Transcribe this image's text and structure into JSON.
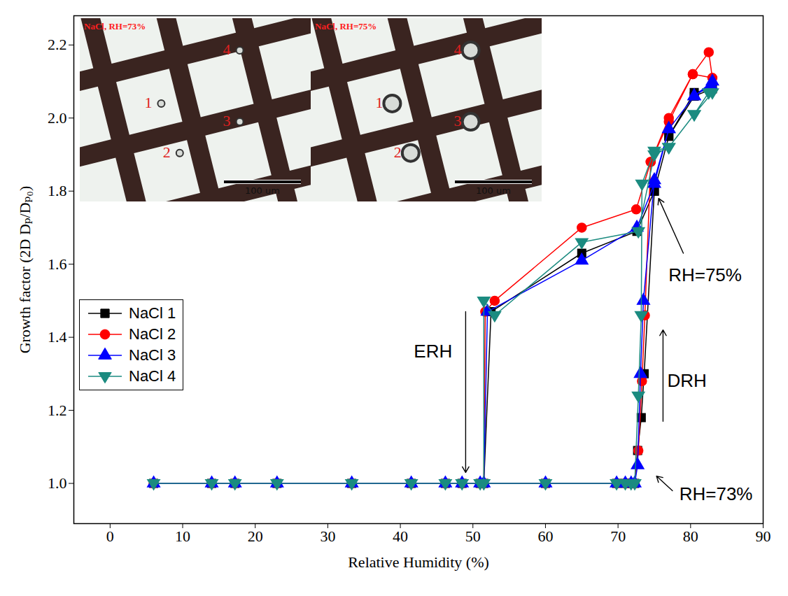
{
  "chart_data": {
    "type": "line",
    "x_label": "Relative Humidity (%)",
    "y_label": "Growth factor (2D Dₚ/Dₚ₀)",
    "xlim": [
      -5,
      90
    ],
    "xticks": [
      0,
      10,
      20,
      30,
      40,
      50,
      60,
      70,
      80,
      90
    ],
    "ylim": [
      0.89,
      2.28
    ],
    "yticks": [
      {
        "value": 1.0,
        "label": "1.0"
      },
      {
        "value": 1.2,
        "label": "1.2"
      },
      {
        "value": 1.4,
        "label": "1.4"
      },
      {
        "value": 1.6,
        "label": "1.6"
      },
      {
        "value": 1.8,
        "label": "1.8"
      },
      {
        "value": 2.0,
        "label": "2.0"
      },
      {
        "value": 2.2,
        "label": "2.2"
      }
    ],
    "legend": "left",
    "series": [
      {
        "name": "NaCl 1",
        "color": "#000000",
        "marker": "square",
        "line_style": "solid",
        "x": [
          6,
          14,
          17.2,
          23,
          33.3,
          41.5,
          46.2,
          48.5,
          51,
          60,
          69.8,
          71,
          71.8,
          72.3,
          72.7,
          73.2,
          73.6,
          75,
          77,
          80.5,
          83,
          80.5,
          77,
          75,
          72.6,
          65,
          52.5,
          51.5
        ],
        "values": [
          1,
          1,
          1,
          1,
          1,
          1,
          1,
          1,
          1,
          1,
          1,
          1,
          1,
          1,
          1.09,
          1.18,
          1.3,
          1.8,
          1.95,
          2.07,
          2.08,
          2.06,
          1.95,
          1.8,
          1.69,
          1.63,
          1.47,
          1.0
        ]
      },
      {
        "name": "NaCl 2",
        "color": "#ff0000",
        "marker": "circle",
        "line_style": "solid",
        "x": [
          6,
          14,
          17.2,
          23,
          33.3,
          41.5,
          46.2,
          48.5,
          51,
          60,
          69.8,
          71,
          71.8,
          72.3,
          72.8,
          73.3,
          73.7,
          74.5,
          77,
          80.3,
          83,
          82.5,
          80.3,
          77,
          74.5,
          72.5,
          65,
          53,
          51.7,
          51.5
        ],
        "values": [
          1,
          1,
          1,
          1,
          1,
          1,
          1,
          1,
          1,
          1,
          1,
          1,
          1,
          1,
          1.09,
          1.28,
          1.46,
          1.88,
          2.0,
          2.12,
          2.11,
          2.18,
          2.12,
          1.99,
          1.88,
          1.75,
          1.7,
          1.5,
          1.47,
          1.0
        ]
      },
      {
        "name": "NaCl 3",
        "color": "#0000ff",
        "marker": "triangle",
        "line_style": "solid",
        "x": [
          6,
          14,
          17.2,
          23,
          33.3,
          41.5,
          46.2,
          48.5,
          51,
          60,
          69.8,
          71,
          71.8,
          72.3,
          72.7,
          73.1,
          73.5,
          75,
          77,
          80.5,
          83,
          82.8,
          80.5,
          77,
          75,
          72.6,
          65,
          52,
          51.5
        ],
        "values": [
          1,
          1,
          1,
          1,
          1,
          1,
          1,
          1,
          1,
          1,
          1,
          1,
          1,
          1,
          1.05,
          1.3,
          1.5,
          1.83,
          1.97,
          2.06,
          2.1,
          2.09,
          2.06,
          1.97,
          1.82,
          1.7,
          1.61,
          1.47,
          1.0
        ]
      },
      {
        "name": "NaCl 4",
        "color": "#1b8b80",
        "marker": "triangle-down",
        "line_style": "solid",
        "x": [
          6,
          14,
          17.2,
          23,
          33.3,
          41.5,
          46.2,
          48.5,
          51,
          60,
          69.8,
          71,
          71.8,
          72.3,
          72.8,
          73.2,
          73.3,
          75,
          77,
          80.5,
          83,
          82.5,
          80.5,
          77,
          75,
          72.8,
          65,
          53,
          51.5,
          51.5
        ],
        "values": [
          1,
          1,
          1,
          1,
          1,
          1,
          1,
          1,
          1,
          1,
          1,
          1,
          1,
          1,
          1.24,
          1.46,
          1.82,
          1.91,
          1.92,
          2.01,
          2.07,
          2.07,
          2.01,
          1.92,
          1.9,
          1.69,
          1.66,
          1.46,
          1.5,
          1.0
        ]
      }
    ],
    "annotations": [
      {
        "text": "ERH",
        "x": 44.5,
        "y": 1.36,
        "arrow": [
          49,
          1.47,
          49,
          1.03
        ]
      },
      {
        "text": "DRH",
        "x": 79.5,
        "y": 1.28,
        "arrow": [
          76.2,
          1.17,
          76.2,
          1.42
        ]
      },
      {
        "text": "RH=75%",
        "x": 82,
        "y": 1.57,
        "arrow": [
          79,
          1.63,
          75.6,
          1.78
        ]
      },
      {
        "text": "RH=73%",
        "x": 83.5,
        "y": 0.97,
        "arrow": [
          77.5,
          0.98,
          75.3,
          1.02
        ]
      }
    ],
    "insets": [
      {
        "title": "NaCl, RH=73%",
        "scale_bar": "100 um",
        "labels": [
          "1",
          "2",
          "3",
          "4"
        ]
      },
      {
        "title": "NaCl, RH=75%",
        "scale_bar": "100 um",
        "labels": [
          "1",
          "2",
          "3",
          "4"
        ]
      }
    ]
  }
}
